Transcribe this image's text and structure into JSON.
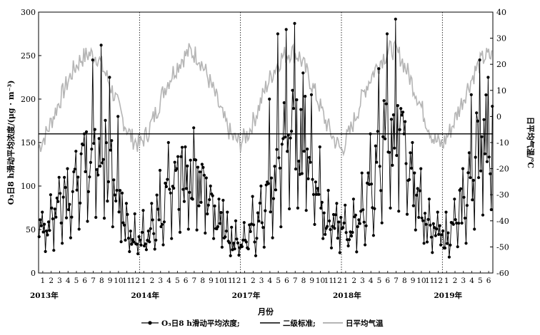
{
  "chart_data": {
    "type": "line",
    "xlabel": "月份",
    "ylabel_left": "O₃日8 h滑动平均浓度/(μg · m⁻³)",
    "ylabel_right": "日平均气温/℃",
    "ylim_left": [
      0,
      300
    ],
    "yticks_left": [
      "0",
      "50",
      "100",
      "150",
      "200",
      "250",
      "300"
    ],
    "ylim_right": [
      -60,
      40
    ],
    "yticks_right": [
      "-60",
      "-50",
      "-40",
      "-30",
      "-20",
      "-10",
      "0",
      "10",
      "20",
      "30",
      "40"
    ],
    "segments": [
      {
        "year": "2013年",
        "months": [
          "1",
          "2",
          "3",
          "4",
          "5",
          "6",
          "7",
          "8",
          "9",
          "10",
          "11",
          "12"
        ]
      },
      {
        "year": "2014年",
        "months": [
          "1",
          "2",
          "3",
          "4",
          "5",
          "6",
          "7",
          "8",
          "9",
          "10",
          "11",
          "12"
        ]
      },
      {
        "year": "2017年",
        "months": [
          "1",
          "2",
          "3",
          "4",
          "5",
          "6",
          "7",
          "8",
          "9",
          "10",
          "11",
          "12"
        ]
      },
      {
        "year": "2018年",
        "months": [
          "1",
          "2",
          "3",
          "4",
          "5",
          "6",
          "7",
          "8",
          "9",
          "10",
          "11",
          "12"
        ]
      },
      {
        "year": "2019年",
        "months": [
          "1",
          "2",
          "3",
          "4",
          "5",
          "6"
        ]
      }
    ],
    "standard_line": 160,
    "series": [
      {
        "name": "O₃日8 h滑动平均浓度;",
        "style": "line-dot",
        "color": "#000000",
        "monthly_mean": [
          52,
          58,
          76,
          90,
          112,
          132,
          142,
          140,
          118,
          80,
          52,
          42,
          42,
          48,
          72,
          88,
          104,
          112,
          110,
          102,
          88,
          66,
          44,
          36,
          32,
          44,
          66,
          90,
          118,
          164,
          166,
          160,
          124,
          88,
          62,
          52,
          46,
          52,
          72,
          96,
          128,
          166,
          158,
          150,
          110,
          76,
          50,
          42,
          40,
          50,
          76,
          112,
          148,
          162
        ],
        "monthly_peak": [
          70,
          90,
          110,
          120,
          140,
          160,
          245,
          262,
          225,
          180,
          80,
          68,
          72,
          80,
          118,
          150,
          120,
          145,
          167,
          125,
          100,
          85,
          70,
          60,
          58,
          88,
          100,
          200,
          275,
          280,
          287,
          230,
          205,
          145,
          95,
          80,
          78,
          85,
          115,
          160,
          235,
          275,
          292,
          160,
          150,
          120,
          85,
          70,
          70,
          85,
          120,
          205,
          245,
          225
        ]
      },
      {
        "name": "二级标准;",
        "style": "line",
        "color": "#000000",
        "value": 160
      },
      {
        "name": "日平均气温",
        "style": "line",
        "color": "#b5b5b5",
        "axis": "right",
        "monthly_mean": [
          -12,
          -6,
          2,
          10,
          17,
          22,
          24,
          23,
          16,
          8,
          -1,
          -8,
          -11,
          -6,
          2,
          11,
          17,
          22,
          25,
          23,
          16,
          8,
          -1,
          -8,
          -10,
          -6,
          2,
          11,
          18,
          23,
          25,
          23,
          16,
          8,
          -1,
          -8,
          -13,
          -6,
          3,
          12,
          18,
          23,
          26,
          23,
          16,
          8,
          -1,
          -9,
          -11,
          -5,
          3,
          11,
          18,
          23
        ]
      }
    ],
    "legend": {
      "position": "bottom",
      "items": [
        {
          "label": "O₃日8 h滑动平均浓度;",
          "style": "line-dot"
        },
        {
          "label": "二级标准;",
          "style": "line"
        },
        {
          "label": "日平均气温",
          "style": "line-gray"
        }
      ]
    },
    "grid": false
  }
}
